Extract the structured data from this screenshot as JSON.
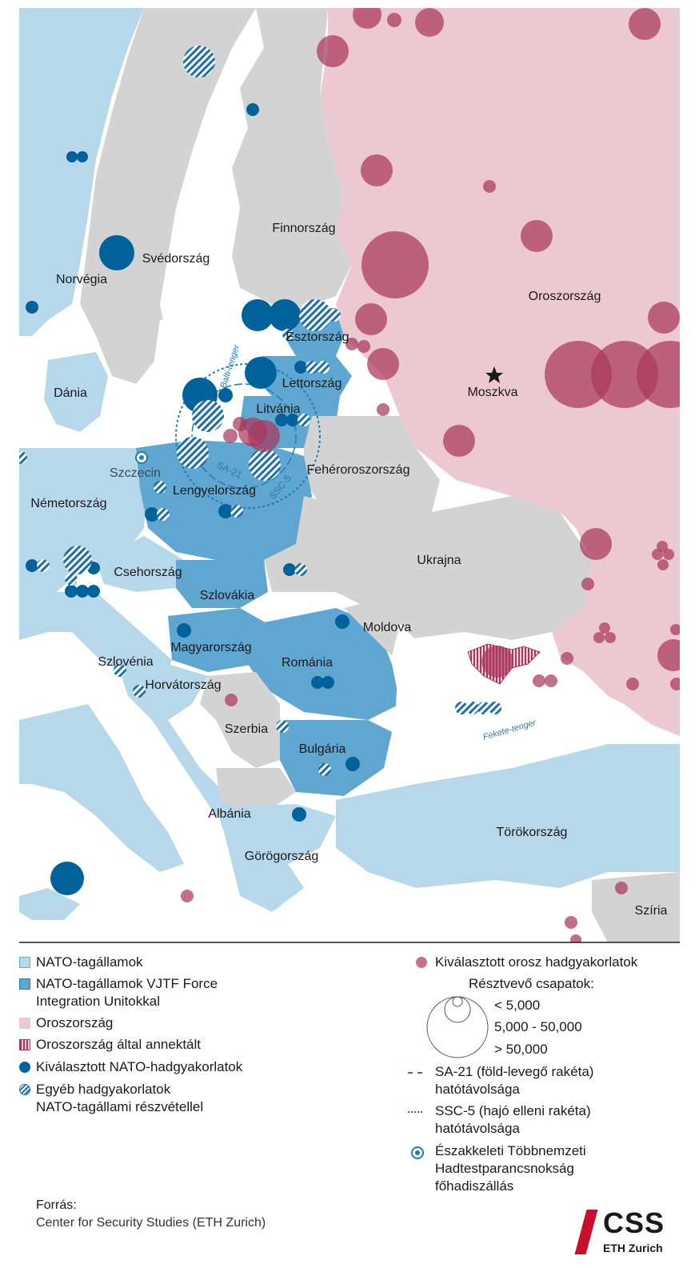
{
  "colors": {
    "nato": "#b7d8ea",
    "vjtf": "#5fa6d1",
    "russia": "#ecc9d2",
    "neutral": "#d3d3d3",
    "sea": "#ffffff",
    "nato_exercise": "#00629b",
    "russia_exercise": "#a9375d"
  },
  "countries": {
    "finnorszag": "Finnország",
    "svedorszag": "Svédország",
    "norvegia": "Norvégia",
    "dania": "Dánia",
    "oroszorszag": "Oroszország",
    "moszkva": "Moszkva",
    "esztorszag": "Észtország",
    "lettorszag": "Lettország",
    "litvania": "Litvánia",
    "feheroroszorszag": "Fehéroroszország",
    "nemetorszag": "Németország",
    "lengyelorszag": "Lengyelország",
    "csehorszag": "Csehország",
    "ukrajna": "Ukrajna",
    "szlovakia": "Szlovákia",
    "moldova": "Moldova",
    "magyarorszag": "Magyarország",
    "romania": "Románia",
    "szlovenia": "Szlovénia",
    "horvatorszag": "Horvátország",
    "szerbia": "Szerbia",
    "bulgaria": "Bulgária",
    "albania": "Albánia",
    "gorogorszag": "Görögország",
    "torokorszag": "Törökország",
    "sziria": "Szíria"
  },
  "cities": {
    "szczecin": "Szczecin"
  },
  "seas": {
    "balti": "Balti-tenger",
    "fekete": "Fekete-tenger"
  },
  "ranges": {
    "sa21": "SA-21",
    "ssc5": "SSC-5"
  },
  "legend": {
    "nato_members": "NATO-tagállamok",
    "vjtf_line1": "NATO-tagállamok VJTF Force",
    "vjtf_line2": "Integration Unitokkal",
    "russia": "Oroszország",
    "annexed": "Oroszország által annektált",
    "nato_exercises": "Kiválasztott NATO-hadgyakorlatok",
    "other_line1": "Egyéb hadgyakorlatok",
    "other_line2": "NATO-tagállami részvétellel",
    "russian_exercises": "Kiválasztott orosz hadgyakorlatok",
    "troops_title": "Résztvevő csapatok:",
    "troops_small": "< 5,000",
    "troops_medium": "5,000 - 50,000",
    "troops_large": "> 50,000",
    "sa21_line1": "SA-21 (föld-levegő rakéta)",
    "sa21_line2": "hatótávolsága",
    "ssc5_line1": "SSC-5 (hajó elleni rakéta)",
    "ssc5_line2": "hatótávolsága",
    "hq_line1": "Északkeleti Többnemzeti",
    "hq_line2": "Hadtestparancsnokság",
    "hq_line3": "főhadiszállás"
  },
  "source": {
    "label": "Forrás:",
    "text": "Center for Security Studies (ETH Zurich)"
  },
  "logo": {
    "name": "CSS",
    "sub": "ETH Zurich"
  }
}
